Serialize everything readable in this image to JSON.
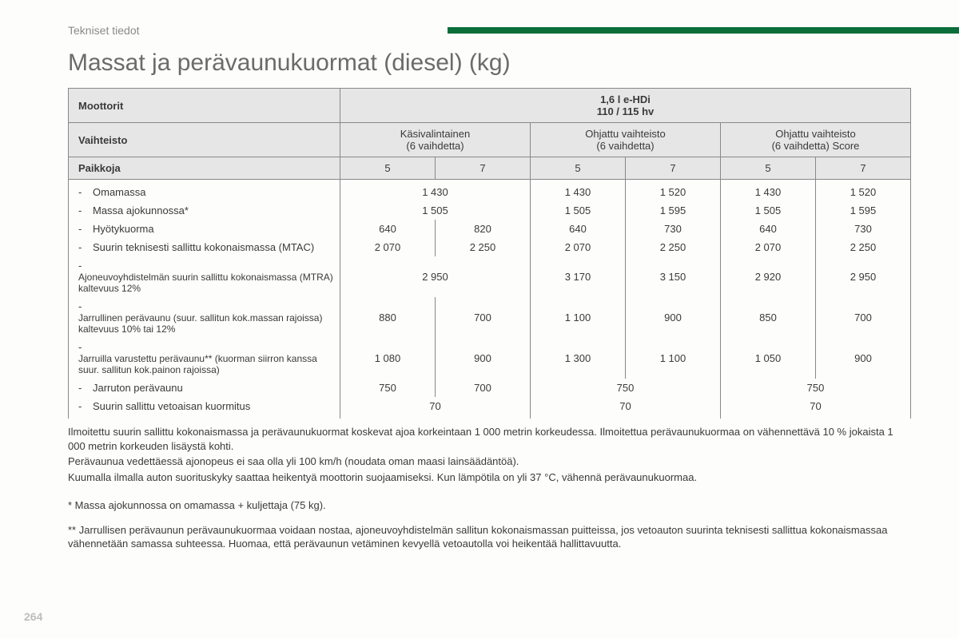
{
  "section_label": "Tekniset tiedot",
  "topbar_color": "#0a6d3a",
  "title": "Massat ja perävaunukuormat (diesel) (kg)",
  "table": {
    "header": {
      "moottorit_label": "Moottorit",
      "engine_line1": "1,6 l e-HDi",
      "engine_line2": "110 / 115 hv",
      "vaihteisto_label": "Vaihteisto",
      "trans1_line1": "Käsivalintainen",
      "trans1_line2": "(6 vaihdetta)",
      "trans2_line1": "Ohjattu vaihteisto",
      "trans2_line2": "(6 vaihdetta)",
      "trans3_line1": "Ohjattu vaihteisto",
      "trans3_line2": "(6 vaihdetta) Score",
      "paikkoja_label": "Paikkoja",
      "seats": [
        "5",
        "7",
        "5",
        "7",
        "5",
        "7"
      ]
    },
    "rows": [
      {
        "label": "Omamassa",
        "cells": [
          {
            "span": 2,
            "v": "1 430"
          },
          {
            "span": 1,
            "v": "1 430"
          },
          {
            "span": 1,
            "v": "1 520"
          },
          {
            "span": 1,
            "v": "1 430"
          },
          {
            "span": 1,
            "v": "1 520"
          }
        ]
      },
      {
        "label": "Massa ajokunnossa*",
        "cells": [
          {
            "span": 2,
            "v": "1 505"
          },
          {
            "span": 1,
            "v": "1 505"
          },
          {
            "span": 1,
            "v": "1 595"
          },
          {
            "span": 1,
            "v": "1 505"
          },
          {
            "span": 1,
            "v": "1 595"
          }
        ]
      },
      {
        "label": "Hyötykuorma",
        "cells": [
          {
            "span": 1,
            "v": "640"
          },
          {
            "span": 1,
            "v": "820"
          },
          {
            "span": 1,
            "v": "640"
          },
          {
            "span": 1,
            "v": "730"
          },
          {
            "span": 1,
            "v": "640"
          },
          {
            "span": 1,
            "v": "730"
          }
        ]
      },
      {
        "label": "Suurin teknisesti sallittu kokonaismassa (MTAC)",
        "cells": [
          {
            "span": 1,
            "v": "2 070"
          },
          {
            "span": 1,
            "v": "2 250"
          },
          {
            "span": 1,
            "v": "2 070"
          },
          {
            "span": 1,
            "v": "2 250"
          },
          {
            "span": 1,
            "v": "2 070"
          },
          {
            "span": 1,
            "v": "2 250"
          }
        ]
      },
      {
        "label": "Ajoneuvoyhdistelmän suurin sallittu kokonaismassa (MTRA) kaltevuus 12%",
        "small": true,
        "cells": [
          {
            "span": 2,
            "v": "2 950"
          },
          {
            "span": 1,
            "v": "3 170"
          },
          {
            "span": 1,
            "v": "3 150"
          },
          {
            "span": 1,
            "v": "2 920"
          },
          {
            "span": 1,
            "v": "2 950"
          }
        ]
      },
      {
        "label": "Jarrullinen perävaunu (suur. sallitun kok.massan rajoissa) kaltevuus 10% tai 12%",
        "small": true,
        "cells": [
          {
            "span": 1,
            "v": "880"
          },
          {
            "span": 1,
            "v": "700"
          },
          {
            "span": 1,
            "v": "1 100"
          },
          {
            "span": 1,
            "v": "900"
          },
          {
            "span": 1,
            "v": "850"
          },
          {
            "span": 1,
            "v": "700"
          }
        ]
      },
      {
        "label": "Jarruilla varustettu perävaunu** (kuorman siirron kanssa suur. sallitun kok.painon rajoissa)",
        "small": true,
        "cells": [
          {
            "span": 1,
            "v": "1 080"
          },
          {
            "span": 1,
            "v": "900"
          },
          {
            "span": 1,
            "v": "1 300"
          },
          {
            "span": 1,
            "v": "1 100"
          },
          {
            "span": 1,
            "v": "1 050"
          },
          {
            "span": 1,
            "v": "900"
          }
        ]
      },
      {
        "label": "Jarruton perävaunu",
        "cells": [
          {
            "span": 1,
            "v": "750"
          },
          {
            "span": 1,
            "v": "700"
          },
          {
            "span": 2,
            "v": "750"
          },
          {
            "span": 2,
            "v": "750"
          }
        ]
      },
      {
        "label": "Suurin sallittu vetoaisan kuormitus",
        "cells": [
          {
            "span": 2,
            "v": "70"
          },
          {
            "span": 2,
            "v": "70"
          },
          {
            "span": 2,
            "v": "70"
          }
        ]
      }
    ]
  },
  "notes": {
    "p1": "Ilmoitettu suurin sallittu kokonaismassa ja perävaunukuormat koskevat ajoa korkeintaan 1 000 metrin korkeudessa. Ilmoitettua perävaunukuormaa on vähennettävä 10 % jokaista 1 000 metrin korkeuden lisäystä kohti.",
    "p2": "Perävaunua vedettäessä ajonopeus ei saa olla yli 100 km/h (noudata oman maasi lainsäädäntöä).",
    "p3": "Kuumalla ilmalla auton suorituskyky saattaa heikentyä moottorin suojaamiseksi. Kun lämpötila on yli 37 °C, vähennä perävaunukuormaa."
  },
  "footnotes": {
    "f1": "* Massa ajokunnossa on omamassa + kuljettaja (75 kg).",
    "f2": "** Jarrullisen perävaunun perävaunukuormaa voidaan nostaa, ajoneuvoyhdistelmän sallitun kokonaismassan puitteissa, jos vetoauton suurinta teknisesti sallittua kokonaismassaa vähennetään samassa suhteessa. Huomaa, että perävaunun vetäminen kevyellä vetoautolla voi heikentää hallittavuutta."
  },
  "page_number": "264"
}
